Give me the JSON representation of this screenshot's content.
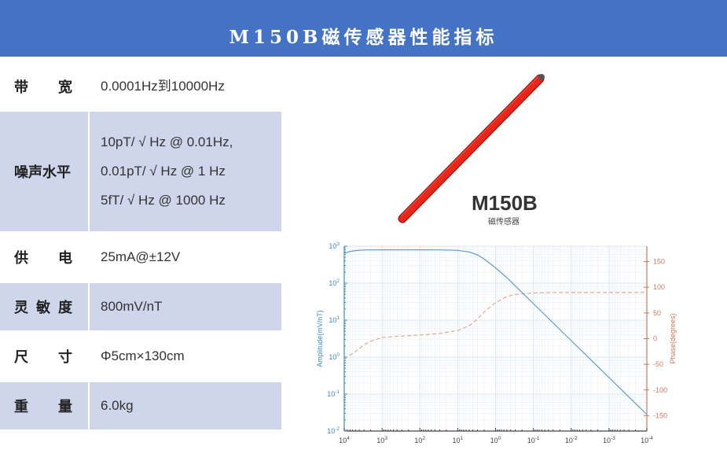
{
  "header": {
    "title": "M150B磁传感器性能指标"
  },
  "specs": [
    {
      "label_chars": [
        "带",
        "宽"
      ],
      "label": "带宽",
      "values": [
        "0.0001Hz到10000Hz"
      ],
      "shaded": false
    },
    {
      "label_chars": [
        "噪声水平"
      ],
      "label": "噪声水平",
      "values": [
        "10pT/ √ Hz @  0.01Hz,",
        "0.01pT/ √ Hz @ 1 Hz",
        "5fT/ √ Hz @ 1000 Hz"
      ],
      "shaded": true
    },
    {
      "label_chars": [
        "供",
        "电"
      ],
      "label": "供电",
      "values": [
        "25mA@±12V"
      ],
      "shaded": false
    },
    {
      "label_chars": [
        "灵",
        "敏",
        "度"
      ],
      "label": "灵敏度",
      "values": [
        "800mV/nT"
      ],
      "shaded": true
    },
    {
      "label_chars": [
        "尺",
        "寸"
      ],
      "label": "尺寸",
      "values": [
        "Φ5cm×130cm"
      ],
      "shaded": false
    },
    {
      "label_chars": [
        "重",
        "量"
      ],
      "label": "重量",
      "values": [
        "6.0kg"
      ],
      "shaded": true
    }
  ],
  "product": {
    "name": "M150B",
    "subtitle": "磁传感器",
    "image": "red-cylindrical-sensor-rod"
  },
  "colors": {
    "banner": "#4473c5",
    "row_shade": "#cfd5ea",
    "amplitude": "#5b9bd5",
    "amplitude_axis": "#3d8bc4",
    "phase": "#e0a486",
    "phase_axis": "#c97b5a",
    "sensor_red": "#d81e12"
  },
  "chart_data": {
    "type": "line",
    "title": "",
    "xlabel": "",
    "x_scale": "log",
    "x_reversed": true,
    "x_ticks": [
      "10^4",
      "10^3",
      "10^2",
      "10^1",
      "10^0",
      "10^-1",
      "10^-2",
      "10^-3",
      "10^-4"
    ],
    "x_tick_values": [
      10000,
      1000,
      100,
      10,
      1,
      0.1,
      0.01,
      0.001,
      0.0001
    ],
    "xlim": [
      10000,
      0.0001
    ],
    "ylabel": "Amplitude(mV/nT)",
    "y_scale": "log",
    "y_ticks": [
      "10^3",
      "10^2",
      "10^1",
      "10^0",
      "10^-1",
      "10^-2"
    ],
    "ylim": [
      0.01,
      1000
    ],
    "y2label": "Phase(degrees)",
    "y2_ticks": [
      150,
      100,
      50,
      0,
      -50,
      -100,
      -150
    ],
    "y2lim": [
      -180,
      180
    ],
    "grid": true,
    "legend": null,
    "series": [
      {
        "name": "Amplitude",
        "axis": "left",
        "style": "solid",
        "x": [
          10000,
          7000,
          5000,
          3000,
          1000,
          100,
          30,
          10,
          5,
          3,
          2,
          1,
          0.5,
          0.1,
          0.01,
          0.001,
          0.0001
        ],
        "values": [
          650,
          720,
          760,
          790,
          800,
          800,
          795,
          770,
          700,
          580,
          450,
          260,
          140,
          28,
          2.8,
          0.28,
          0.028
        ]
      },
      {
        "name": "Phase",
        "axis": "right",
        "style": "dashed",
        "x": [
          10000,
          5000,
          3000,
          2000,
          1000,
          500,
          100,
          30,
          10,
          5,
          3,
          2,
          1,
          0.5,
          0.3,
          0.1,
          0.01,
          0.001,
          0.0001
        ],
        "values": [
          -40,
          -25,
          -12,
          -5,
          2,
          4,
          7,
          10,
          16,
          25,
          38,
          52,
          70,
          82,
          86,
          89,
          90,
          90,
          90
        ]
      }
    ]
  }
}
